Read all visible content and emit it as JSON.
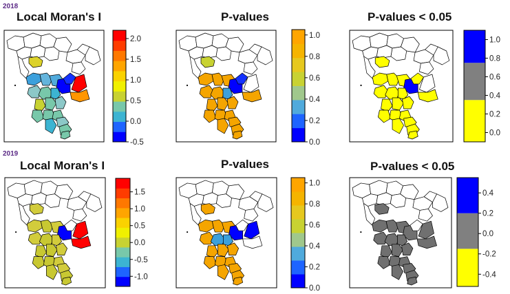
{
  "chart_data": {
    "type": "choropleth-map-grid",
    "rows": [
      {
        "year": "2018",
        "panels": [
          {
            "id": "moran-2018",
            "title": "Local Moran's I",
            "legend": {
              "type": "continuous",
              "range": [
                -0.5,
                2.2
              ],
              "ticks": [
                "-0.5",
                "0.0",
                "0.5",
                "1.0",
                "1.5",
                "2.0"
              ],
              "tick_values": [
                -0.5,
                0.0,
                0.5,
                1.0,
                1.5,
                2.0
              ],
              "colors": [
                "#0000ff",
                "#1e64ff",
                "#3cb4d2",
                "#78c8aa",
                "#c8d232",
                "#f0f000",
                "#fad200",
                "#ffa500",
                "#ff7800",
                "#ff3c00",
                "#ff0000"
              ]
            },
            "region_colors": [
              "#ffffff",
              "#ffffff",
              "#ffffff",
              "#ffffff",
              "#ffffff",
              "#ffffff",
              "#ffffff",
              "#dcd22a",
              "#ffffff",
              "#ffffff",
              "#ffffff",
              "#ffffff",
              "#ffffff",
              "#3ca0dc",
              "#64b4dc",
              "#50aadc",
              "#0000ff",
              "#1432ff",
              "#ff0000",
              "#ff9600",
              "#8cc8c8",
              "#78c8aa",
              "#3cb4d2",
              "#c8d232",
              "#78c8aa",
              "#8cc8c8",
              "#78c8aa",
              "#78c8aa",
              "#78c8aa",
              "#3cb4d2",
              "#8cc8c8",
              "#78c8aa",
              "#78c8aa"
            ]
          },
          {
            "id": "pvalues-2018",
            "title": "P-values",
            "legend": {
              "type": "continuous",
              "range": [
                0.0,
                1.05
              ],
              "ticks": [
                "0.0",
                "0.2",
                "0.4",
                "0.6",
                "0.8",
                "1.0"
              ],
              "tick_values": [
                0.0,
                0.2,
                0.4,
                0.6,
                0.8,
                1.0
              ],
              "colors": [
                "#0000ff",
                "#1e64ff",
                "#50aadc",
                "#a0c88c",
                "#c8d232",
                "#e6c81e",
                "#f5b400",
                "#ffa500"
              ]
            },
            "region_colors": [
              "#ffffff",
              "#ffffff",
              "#ffffff",
              "#ffffff",
              "#ffffff",
              "#ffffff",
              "#ffffff",
              "#c8d232",
              "#ffffff",
              "#ffffff",
              "#ffffff",
              "#ffffff",
              "#ffffff",
              "#f5a500",
              "#f5a500",
              "#f5a500",
              "#0000ff",
              "#1432ff",
              "#ffffff",
              "#f5a500",
              "#f5a500",
              "#f5a500",
              "#3ca0dc",
              "#f5a500",
              "#f5a500",
              "#f5a500",
              "#f5a500",
              "#f5a500",
              "#f5a500",
              "#f5a500",
              "#f5a500",
              "#f5a500",
              "#f5a500"
            ]
          },
          {
            "id": "significance-2018",
            "title": "P-values < 0.05",
            "legend": {
              "type": "binned",
              "range": [
                -0.1,
                1.1
              ],
              "ticks": [
                "0.0",
                "0.2",
                "0.4",
                "0.6",
                "0.8",
                "1.0"
              ],
              "tick_values": [
                0.0,
                0.2,
                0.4,
                0.6,
                0.8,
                1.0
              ],
              "bins": [
                {
                  "from": -0.1,
                  "to": 0.35,
                  "color": "#ffff00"
                },
                {
                  "from": 0.35,
                  "to": 0.75,
                  "color": "#808080"
                },
                {
                  "from": 0.75,
                  "to": 1.1,
                  "color": "#0000ff"
                }
              ]
            },
            "region_colors": [
              "#ffffff",
              "#ffffff",
              "#ffffff",
              "#ffffff",
              "#ffffff",
              "#ffffff",
              "#ffffff",
              "#ffff00",
              "#ffffff",
              "#ffffff",
              "#ffffff",
              "#ffffff",
              "#ffffff",
              "#ffff00",
              "#ffff00",
              "#ffff00",
              "#0000ff",
              "#ffff00",
              "#ffffff",
              "#ffff00",
              "#ffff00",
              "#ffff00",
              "#ffff00",
              "#ffff00",
              "#ffff00",
              "#ffff00",
              "#ffff00",
              "#ffff00",
              "#ffff00",
              "#ffff00",
              "#ffff00",
              "#ffff00",
              "#ffff00"
            ]
          }
        ]
      },
      {
        "year": "2019",
        "panels": [
          {
            "id": "moran-2019",
            "title": "Local Moran's I",
            "legend": {
              "type": "continuous",
              "range": [
                -1.3,
                1.9
              ],
              "ticks": [
                "-1.0",
                "-0.5",
                "0.0",
                "0.5",
                "1.0",
                "1.5"
              ],
              "tick_values": [
                -1.0,
                -0.5,
                0.0,
                0.5,
                1.0,
                1.5
              ],
              "colors": [
                "#0000ff",
                "#1e64ff",
                "#3cb4d2",
                "#78c8aa",
                "#c8d232",
                "#f0f000",
                "#fad200",
                "#ffa500",
                "#ff7800",
                "#ff3c00",
                "#ff0000"
              ]
            },
            "region_colors": [
              "#ffffff",
              "#ffffff",
              "#ffffff",
              "#ffffff",
              "#ffffff",
              "#ffffff",
              "#ffffff",
              "#d2cc3c",
              "#ffffff",
              "#ffffff",
              "#ffffff",
              "#ffffff",
              "#ffffff",
              "#d2cc3c",
              "#c8c832",
              "#d2cc3c",
              "#0000ff",
              "#ffffff",
              "#ff0000",
              "#ff0000",
              "#d2cc3c",
              "#c8c832",
              "#d2cc3c",
              "#c8c832",
              "#c8c832",
              "#d2cc3c",
              "#c8c832",
              "#c8c832",
              "#d2cc3c",
              "#c8c832",
              "#d2cc3c",
              "#c8c832",
              "#c8c832"
            ]
          },
          {
            "id": "pvalues-2019",
            "title": "P-values",
            "legend": {
              "type": "continuous",
              "range": [
                0.0,
                1.05
              ],
              "ticks": [
                "0.0",
                "0.2",
                "0.4",
                "0.6",
                "0.8",
                "1.0"
              ],
              "tick_values": [
                0.0,
                0.2,
                0.4,
                0.6,
                0.8,
                1.0
              ],
              "colors": [
                "#0000ff",
                "#1e64ff",
                "#50aadc",
                "#a0c88c",
                "#c8d232",
                "#e6c81e",
                "#f5b400",
                "#ffa500"
              ]
            },
            "region_colors": [
              "#ffffff",
              "#ffffff",
              "#ffffff",
              "#ffffff",
              "#ffffff",
              "#ffffff",
              "#ffffff",
              "#f5a500",
              "#ffffff",
              "#ffffff",
              "#ffffff",
              "#ffffff",
              "#ffffff",
              "#f5a500",
              "#f5a500",
              "#f5a500",
              "#0000ff",
              "#ffffff",
              "#0000ff",
              "#ffffff",
              "#f5a500",
              "#3ca0dc",
              "#3ca0dc",
              "#f5a500",
              "#f5a500",
              "#f5a500",
              "#f5a500",
              "#f5a500",
              "#f5a500",
              "#f5a500",
              "#f5a500",
              "#f5a500",
              "#f5a500"
            ]
          },
          {
            "id": "significance-2019",
            "title": "P-values < 0.05",
            "legend": {
              "type": "binned",
              "range": [
                -0.52,
                0.55
              ],
              "ticks": [
                "-0.4",
                "-0.2",
                "0.0",
                "0.2",
                "0.4"
              ],
              "tick_values": [
                -0.4,
                -0.2,
                0.0,
                0.2,
                0.4
              ],
              "bins": [
                {
                  "from": -0.52,
                  "to": -0.15,
                  "color": "#ffff00"
                },
                {
                  "from": -0.15,
                  "to": 0.2,
                  "color": "#808080"
                },
                {
                  "from": 0.2,
                  "to": 0.55,
                  "color": "#0000ff"
                }
              ]
            },
            "region_colors": [
              "#ffffff",
              "#ffffff",
              "#ffffff",
              "#ffffff",
              "#ffffff",
              "#ffffff",
              "#ffffff",
              "#707070",
              "#ffffff",
              "#ffffff",
              "#ffffff",
              "#ffffff",
              "#ffffff",
              "#707070",
              "#707070",
              "#707070",
              "#707070",
              "#ffffff",
              "#707070",
              "#707070",
              "#707070",
              "#707070",
              "#707070",
              "#707070",
              "#707070",
              "#707070",
              "#707070",
              "#707070",
              "#707070",
              "#707070",
              "#707070",
              "#707070",
              "#707070"
            ]
          }
        ]
      }
    ]
  }
}
